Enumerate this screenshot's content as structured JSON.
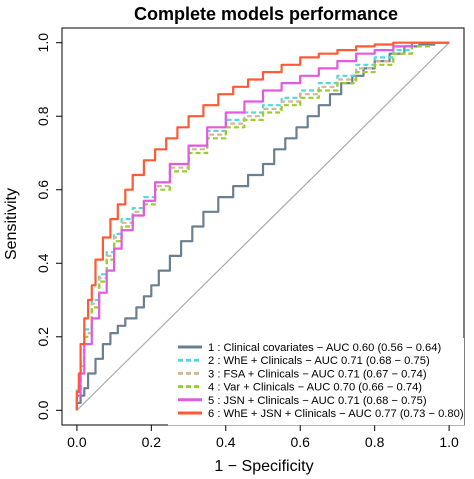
{
  "chart_data": {
    "type": "line",
    "title": "Complete models performance",
    "xlabel": "1 − Specificity",
    "ylabel": "Sensitivity",
    "xlim": [
      -0.04,
      1.04
    ],
    "ylim": [
      -0.04,
      1.04
    ],
    "xticks": [
      "0.0",
      "0.2",
      "0.4",
      "0.6",
      "0.8",
      "1.0"
    ],
    "yticks": [
      "0.0",
      "0.2",
      "0.4",
      "0.6",
      "0.8",
      "1.0"
    ],
    "grid": false,
    "legend_position": "bottom-right",
    "diagonal": {
      "from": [
        0,
        0
      ],
      "to": [
        1,
        1
      ],
      "color": "#aaaaaa"
    },
    "series": [
      {
        "name": "1 : Clinical covariates − AUC 0.60 (0.56 − 0.64)",
        "color": "#6a7f92",
        "dash": "solid",
        "x": [
          0,
          0.01,
          0.02,
          0.03,
          0.05,
          0.07,
          0.09,
          0.11,
          0.13,
          0.16,
          0.18,
          0.2,
          0.22,
          0.25,
          0.28,
          0.31,
          0.34,
          0.38,
          0.42,
          0.46,
          0.5,
          0.53,
          0.56,
          0.59,
          0.62,
          0.65,
          0.68,
          0.71,
          0.74,
          0.77,
          0.8,
          0.84,
          0.88,
          0.92,
          0.96,
          1.0
        ],
        "y": [
          0,
          0.02,
          0.04,
          0.06,
          0.1,
          0.14,
          0.18,
          0.21,
          0.23,
          0.25,
          0.28,
          0.31,
          0.34,
          0.38,
          0.42,
          0.46,
          0.5,
          0.54,
          0.58,
          0.61,
          0.64,
          0.67,
          0.71,
          0.74,
          0.77,
          0.8,
          0.83,
          0.86,
          0.89,
          0.91,
          0.93,
          0.95,
          0.97,
          0.99,
          0.995,
          1.0
        ]
      },
      {
        "name": "2 : WhE + Clinicals − AUC 0.71 (0.68 − 0.75)",
        "color": "#56d8d8",
        "dash": "dashed",
        "x": [
          0,
          0.01,
          0.02,
          0.04,
          0.06,
          0.08,
          0.1,
          0.12,
          0.15,
          0.18,
          0.21,
          0.25,
          0.3,
          0.35,
          0.4,
          0.45,
          0.5,
          0.55,
          0.6,
          0.65,
          0.7,
          0.75,
          0.8,
          0.85,
          0.9,
          0.95,
          1.0
        ],
        "y": [
          0,
          0.06,
          0.13,
          0.22,
          0.3,
          0.37,
          0.43,
          0.48,
          0.52,
          0.55,
          0.58,
          0.62,
          0.67,
          0.72,
          0.76,
          0.79,
          0.81,
          0.83,
          0.85,
          0.87,
          0.89,
          0.91,
          0.94,
          0.96,
          0.98,
          0.99,
          1.0
        ]
      },
      {
        "name": "3 : FSA + Clinicals − AUC 0.71 (0.67 − 0.74)",
        "color": "#d4b896",
        "dash": "dashed",
        "x": [
          0,
          0.01,
          0.02,
          0.04,
          0.06,
          0.08,
          0.1,
          0.12,
          0.15,
          0.18,
          0.21,
          0.25,
          0.3,
          0.35,
          0.4,
          0.45,
          0.5,
          0.55,
          0.6,
          0.65,
          0.7,
          0.75,
          0.8,
          0.85,
          0.9,
          0.95,
          1.0
        ],
        "y": [
          0,
          0.05,
          0.12,
          0.21,
          0.29,
          0.36,
          0.42,
          0.47,
          0.51,
          0.54,
          0.57,
          0.61,
          0.66,
          0.71,
          0.75,
          0.78,
          0.8,
          0.82,
          0.84,
          0.86,
          0.88,
          0.9,
          0.93,
          0.95,
          0.97,
          0.99,
          1.0
        ]
      },
      {
        "name": "4 : Var + Clinicals − AUC 0.70 (0.66 − 0.74)",
        "color": "#9acd32",
        "dash": "dashed",
        "x": [
          0,
          0.01,
          0.02,
          0.04,
          0.06,
          0.08,
          0.1,
          0.12,
          0.15,
          0.18,
          0.21,
          0.25,
          0.3,
          0.35,
          0.4,
          0.45,
          0.5,
          0.55,
          0.6,
          0.65,
          0.7,
          0.75,
          0.8,
          0.85,
          0.9,
          0.95,
          1.0
        ],
        "y": [
          0,
          0.05,
          0.11,
          0.2,
          0.28,
          0.35,
          0.41,
          0.46,
          0.5,
          0.53,
          0.56,
          0.6,
          0.65,
          0.7,
          0.74,
          0.77,
          0.79,
          0.81,
          0.83,
          0.85,
          0.87,
          0.89,
          0.92,
          0.94,
          0.97,
          0.99,
          1.0
        ]
      },
      {
        "name": "5 : JSN + Clinicals − AUC 0.71 (0.68 − 0.75)",
        "color": "#e15ae1",
        "dash": "solid",
        "x": [
          0,
          0.01,
          0.02,
          0.04,
          0.06,
          0.08,
          0.1,
          0.12,
          0.15,
          0.18,
          0.21,
          0.25,
          0.3,
          0.35,
          0.4,
          0.45,
          0.5,
          0.55,
          0.6,
          0.65,
          0.7,
          0.75,
          0.8,
          0.85,
          0.9,
          0.95,
          1.0
        ],
        "y": [
          0,
          0.04,
          0.1,
          0.18,
          0.25,
          0.32,
          0.38,
          0.44,
          0.49,
          0.53,
          0.57,
          0.62,
          0.67,
          0.72,
          0.77,
          0.81,
          0.84,
          0.87,
          0.89,
          0.91,
          0.93,
          0.95,
          0.97,
          0.98,
          0.99,
          1.0,
          1.0
        ]
      },
      {
        "name": "6 : WhE + JSN + Clinicals − AUC 0.77 (0.73 − 0.80)",
        "color": "#ff5a36",
        "dash": "solid",
        "x": [
          0,
          0.005,
          0.01,
          0.02,
          0.03,
          0.04,
          0.05,
          0.07,
          0.09,
          0.11,
          0.13,
          0.15,
          0.18,
          0.21,
          0.24,
          0.27,
          0.3,
          0.34,
          0.38,
          0.42,
          0.46,
          0.5,
          0.55,
          0.6,
          0.65,
          0.7,
          0.75,
          0.8,
          0.85,
          0.9,
          0.95,
          1.0
        ],
        "y": [
          0,
          0.05,
          0.1,
          0.18,
          0.25,
          0.3,
          0.34,
          0.41,
          0.47,
          0.52,
          0.56,
          0.6,
          0.64,
          0.68,
          0.71,
          0.74,
          0.77,
          0.8,
          0.83,
          0.86,
          0.88,
          0.9,
          0.92,
          0.94,
          0.96,
          0.97,
          0.98,
          0.99,
          0.995,
          1.0,
          1.0,
          1.0
        ]
      }
    ]
  }
}
